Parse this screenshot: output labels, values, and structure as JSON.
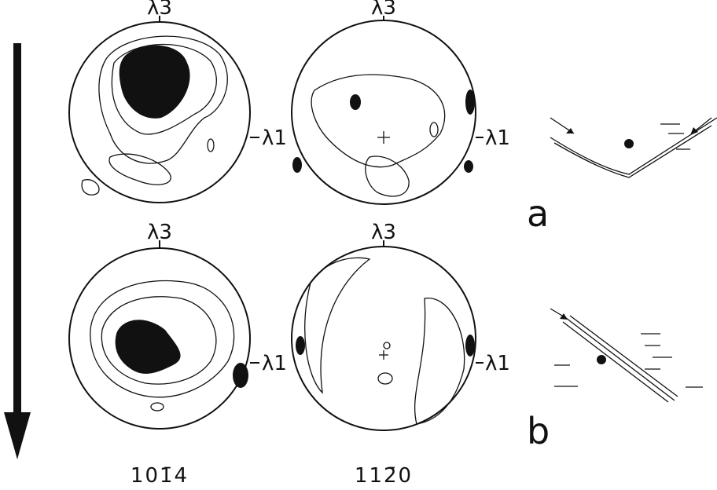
{
  "pole_figures": [
    {
      "top": "λ3",
      "right": "λ1"
    },
    {
      "top": "λ3",
      "right": "λ1"
    },
    {
      "top": "λ3",
      "right": "λ1"
    },
    {
      "top": "λ3",
      "right": "λ1"
    }
  ],
  "panel_labels": [
    "a",
    "b"
  ],
  "captions": [
    "101̄4",
    "112̄0"
  ]
}
